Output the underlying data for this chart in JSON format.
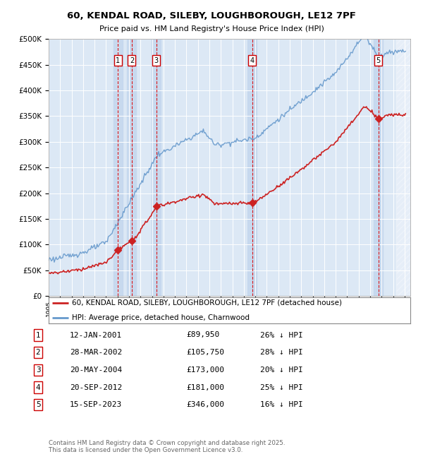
{
  "title": "60, KENDAL ROAD, SILEBY, LOUGHBOROUGH, LE12 7PF",
  "subtitle": "Price paid vs. HM Land Registry's House Price Index (HPI)",
  "ylim": [
    0,
    500000
  ],
  "yticks": [
    0,
    50000,
    100000,
    150000,
    200000,
    250000,
    300000,
    350000,
    400000,
    450000,
    500000
  ],
  "ytick_labels": [
    "£0",
    "£50K",
    "£100K",
    "£150K",
    "£200K",
    "£250K",
    "£300K",
    "£350K",
    "£400K",
    "£450K",
    "£500K"
  ],
  "xlim_min": 1995.0,
  "xlim_max": 2026.5,
  "background_color": "#dce8f5",
  "hpi_color": "#6699cc",
  "price_color": "#cc2222",
  "vspan_color": "#c5d8ee",
  "transactions": [
    {
      "num": 1,
      "date": "12-JAN-2001",
      "year": 2001.04,
      "price": 89950,
      "pct": "26%"
    },
    {
      "num": 2,
      "date": "28-MAR-2002",
      "year": 2002.24,
      "price": 105750,
      "pct": "28%"
    },
    {
      "num": 3,
      "date": "20-MAY-2004",
      "year": 2004.38,
      "price": 173000,
      "pct": "20%"
    },
    {
      "num": 4,
      "date": "20-SEP-2012",
      "year": 2012.72,
      "price": 181000,
      "pct": "25%"
    },
    {
      "num": 5,
      "date": "15-SEP-2023",
      "year": 2023.71,
      "price": 346000,
      "pct": "16%"
    }
  ],
  "legend_label_red": "60, KENDAL ROAD, SILEBY, LOUGHBOROUGH, LE12 7PF (detached house)",
  "legend_label_blue": "HPI: Average price, detached house, Charnwood",
  "footer": "Contains HM Land Registry data © Crown copyright and database right 2025.\nThis data is licensed under the Open Government Licence v3.0."
}
